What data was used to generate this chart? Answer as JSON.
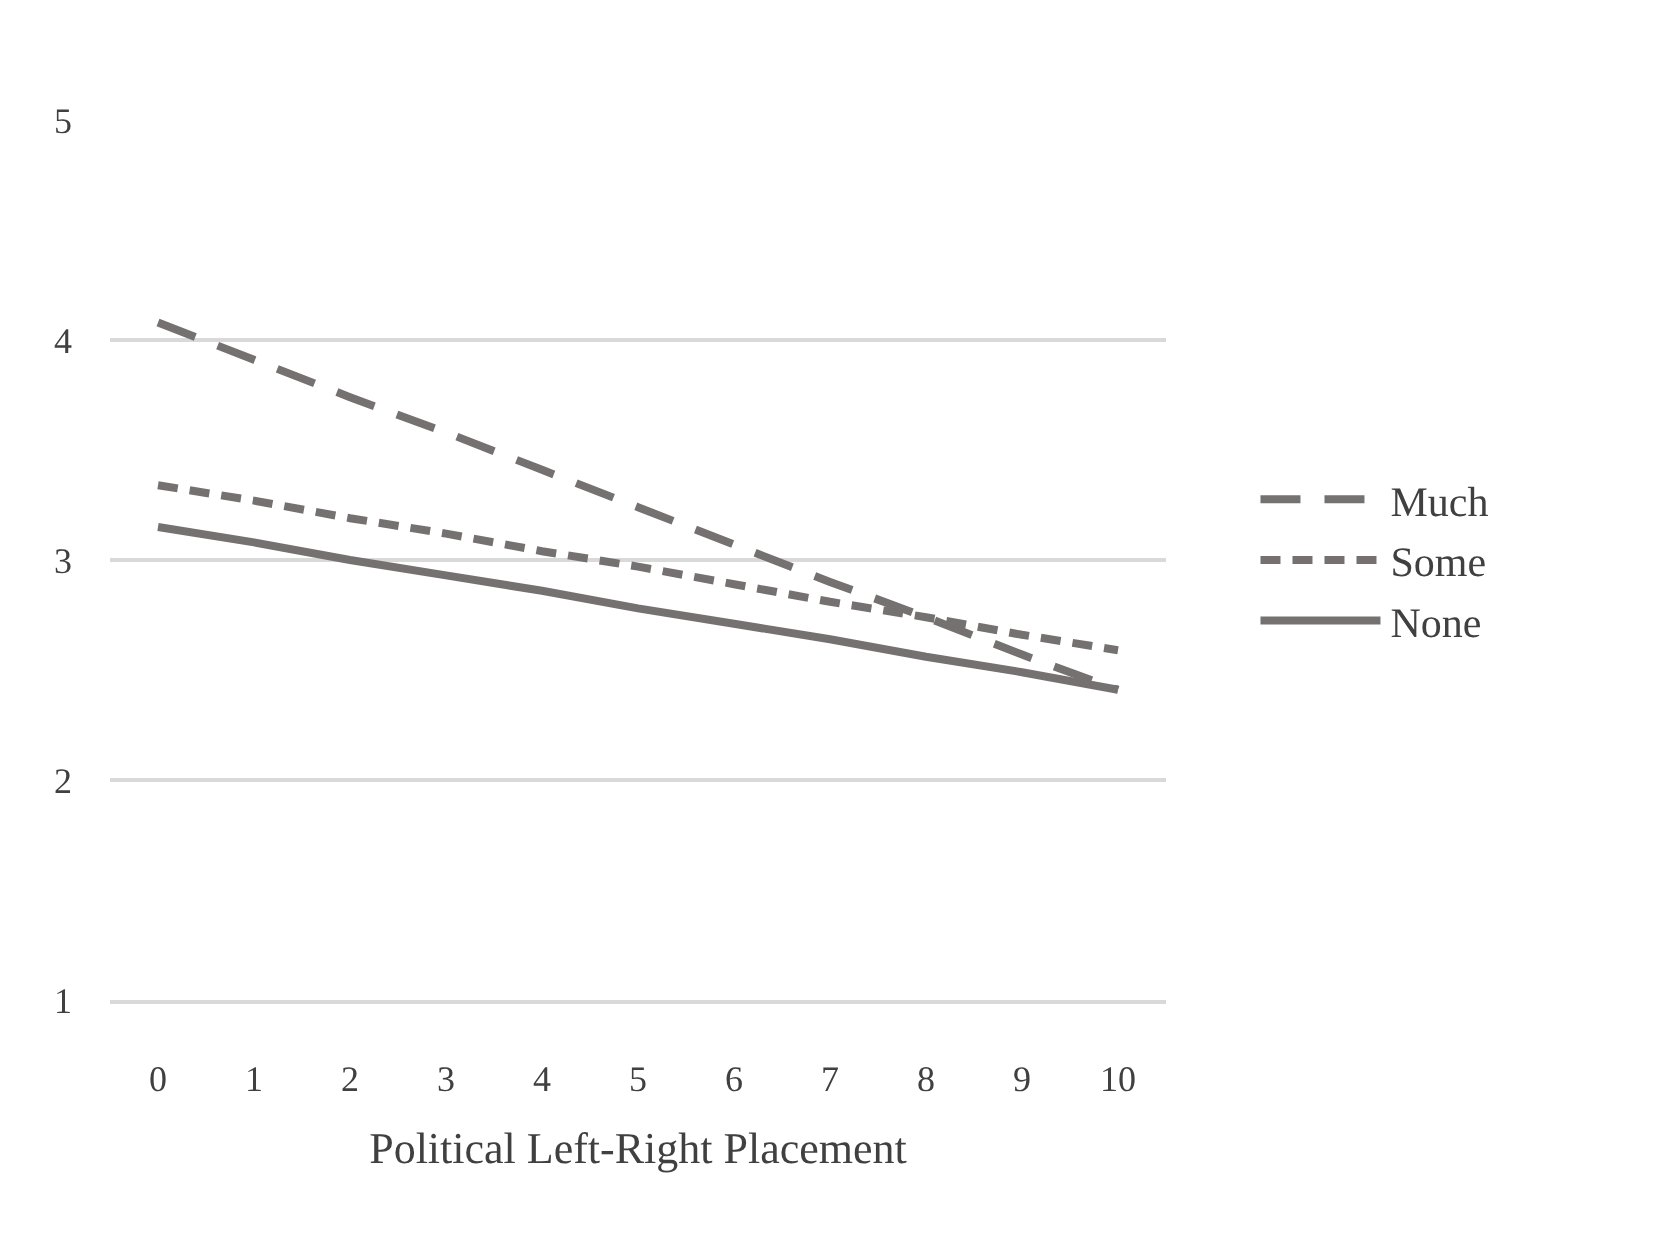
{
  "chart_data": {
    "type": "line",
    "xlabel": "Political Left-Right Placement",
    "categories": [
      "0",
      "1",
      "2",
      "3",
      "4",
      "5",
      "6",
      "7",
      "8",
      "9",
      "10"
    ],
    "series": [
      {
        "name": "Much",
        "color": "#767171",
        "line_style": "dashed",
        "values": [
          4.08,
          3.91,
          3.74,
          3.58,
          3.41,
          3.24,
          3.07,
          2.9,
          2.74,
          2.57,
          2.41
        ]
      },
      {
        "name": "Some",
        "color": "#767171",
        "line_style": "dotted",
        "values": [
          3.34,
          3.27,
          3.19,
          3.12,
          3.04,
          2.97,
          2.89,
          2.81,
          2.74,
          2.66,
          2.59
        ]
      },
      {
        "name": "None",
        "color": "#767171",
        "line_style": "solid",
        "values": [
          3.15,
          3.08,
          3.0,
          2.93,
          2.86,
          2.78,
          2.71,
          2.64,
          2.56,
          2.49,
          2.41
        ]
      }
    ],
    "ylim": [
      1,
      5
    ],
    "yticks": [
      1,
      2,
      3,
      4,
      5
    ],
    "grid": "y",
    "legend": "right",
    "marker": "none"
  }
}
